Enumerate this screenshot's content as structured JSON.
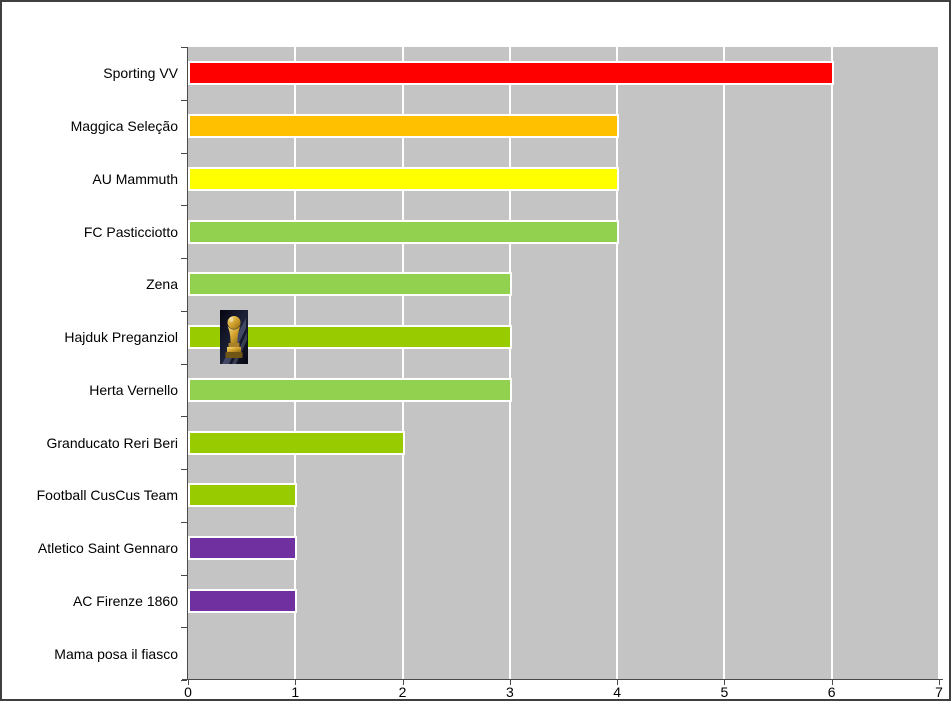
{
  "window": {
    "background": "#FFFFFF",
    "border_color": "#3F3F3F"
  },
  "chart_data": {
    "type": "bar",
    "orientation": "horizontal",
    "title": "",
    "xlabel": "",
    "ylabel": "",
    "legend": "none",
    "categories": [
      "Sporting VV",
      "Maggica Seleção",
      "AU Mammuth",
      "FC Pasticciotto",
      "Zena",
      "Hajduk Preganziol",
      "Herta Vernello",
      "Granducato Reri Beri",
      "Football CusCus Team",
      "Atletico Saint Gennaro",
      "AC Firenze 1860",
      "Mama posa il fiasco"
    ],
    "values": [
      6,
      4,
      4,
      4,
      3,
      3,
      3,
      2,
      1,
      1,
      1,
      0
    ],
    "bar_colors": [
      "#FF0000",
      "#FFC000",
      "#FFFF00",
      "#92D050",
      "#92D050",
      "#99CC00",
      "#92D050",
      "#99CC00",
      "#99CC00",
      "#7030A0",
      "#7030A0",
      "#99CC00"
    ],
    "xlim": [
      0,
      7
    ],
    "x_ticks": [
      "0",
      "1",
      "2",
      "3",
      "4",
      "5",
      "6",
      "7"
    ],
    "plot_background": "#C4C4C4",
    "gridlines": {
      "vertical": true,
      "horizontal": false,
      "color": "#FFFFFF"
    },
    "bar_border_color": "#FFFFFF",
    "axis_color": "#4A4A4A",
    "decorations": [
      {
        "name": "world-cup-trophy-image",
        "category": "Hajduk Preganziol",
        "x_value_approx": 0.4
      }
    ]
  }
}
